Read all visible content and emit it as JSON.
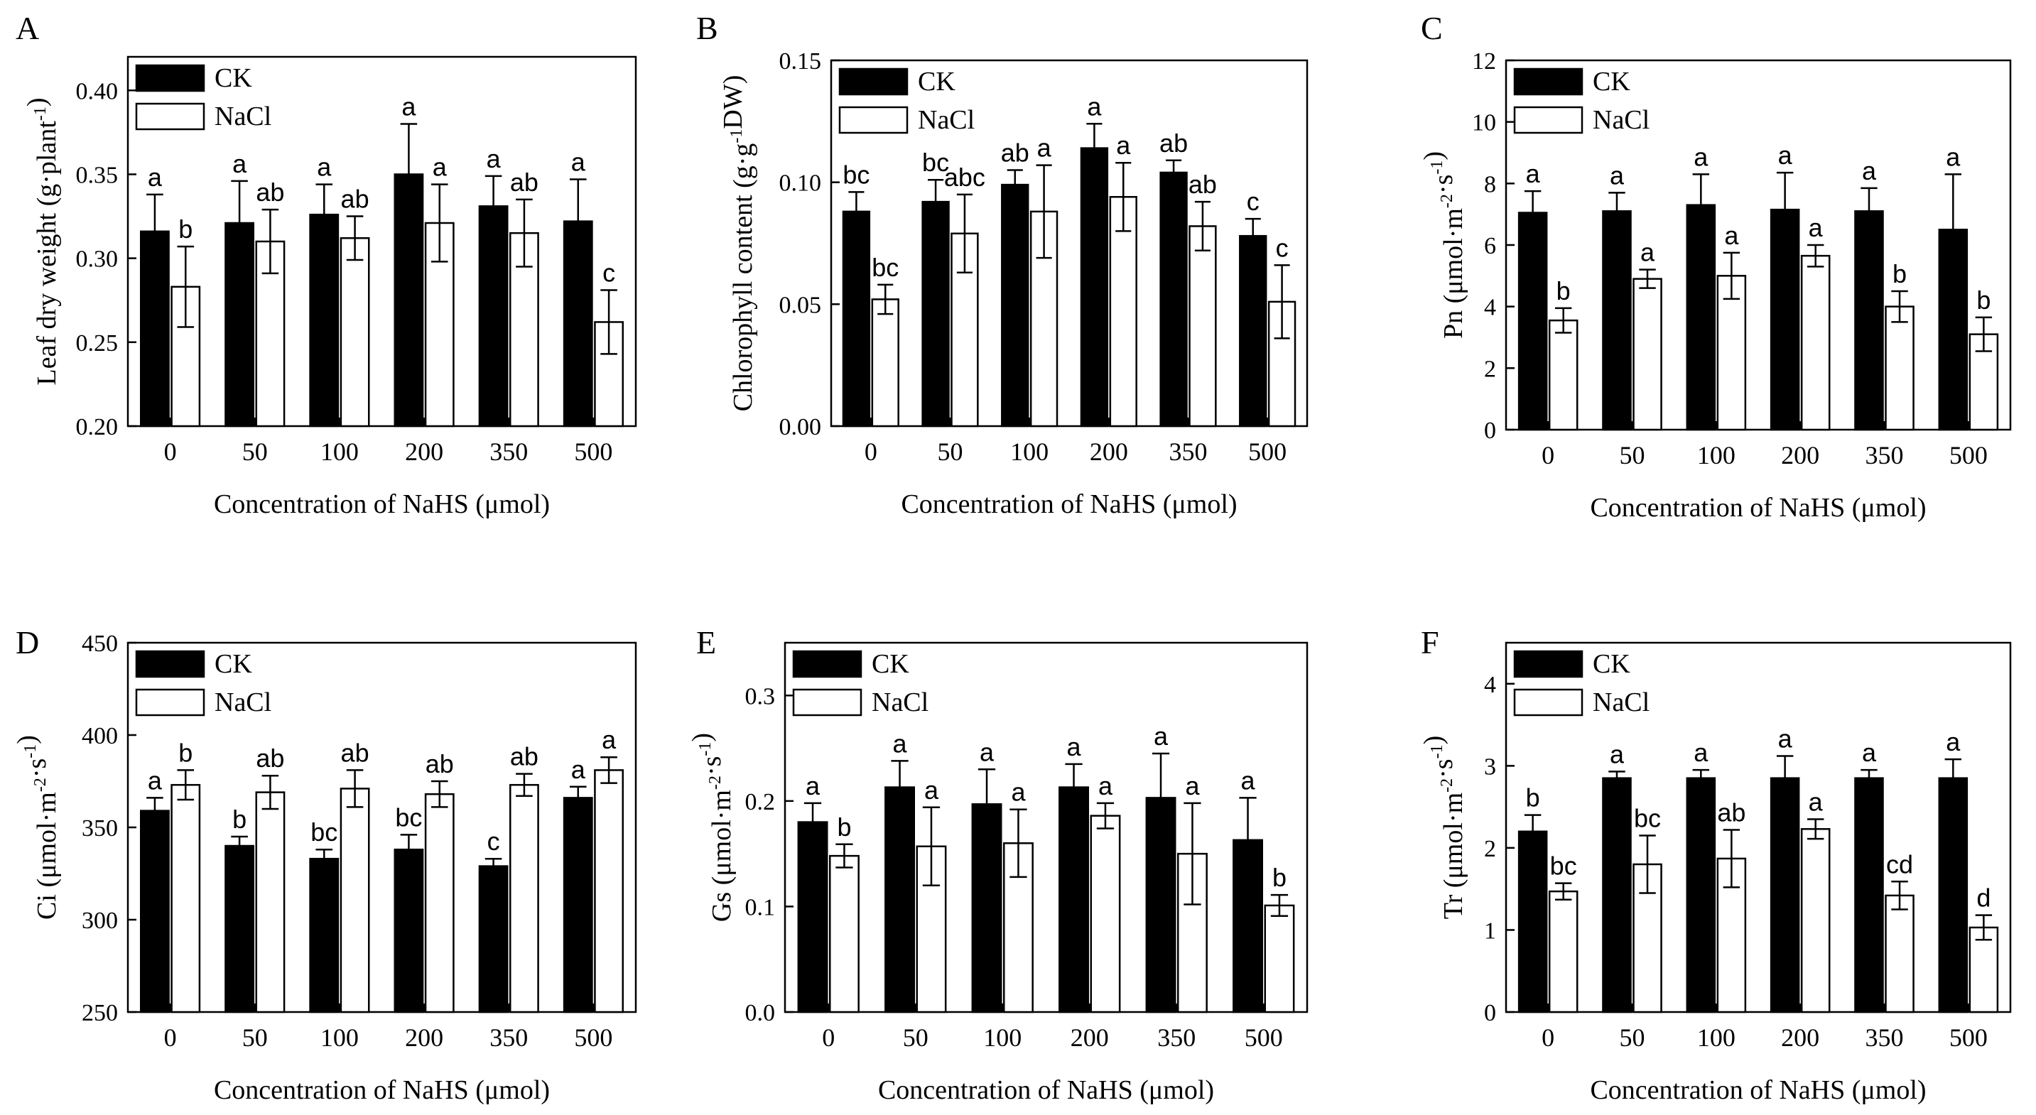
{
  "figure": {
    "colors": {
      "ck_fill": "#000000",
      "nacl_fill": "#ffffff",
      "stroke": "#000000"
    }
  },
  "chart_data": [
    {
      "panel": "A",
      "type": "bar",
      "categories": [
        "0",
        "50",
        "100",
        "200",
        "350",
        "500"
      ],
      "xlabel": "Concentration of NaHS (μmol)",
      "ylabel": {
        "base": "Leaf dry weight (g·plant",
        "sup": "-1",
        "tail": ")"
      },
      "ylim": [
        0.2,
        0.42
      ],
      "yticks": [
        0.2,
        0.25,
        0.3,
        0.35,
        0.4
      ],
      "ytick_labels": [
        "0.20",
        "0.25",
        "0.30",
        "0.35",
        "0.40"
      ],
      "legend": {
        "placement": "top-left",
        "labels": [
          "CK",
          "NaCl"
        ]
      },
      "series": [
        {
          "name": "CK",
          "values": [
            0.316,
            0.321,
            0.326,
            0.35,
            0.331,
            0.322
          ],
          "errors": [
            0.022,
            0.025,
            0.018,
            0.03,
            0.018,
            0.025
          ],
          "letters": [
            "a",
            "a",
            "a",
            "a",
            "a",
            "a"
          ]
        },
        {
          "name": "NaCl",
          "values": [
            0.283,
            0.31,
            0.312,
            0.321,
            0.315,
            0.262
          ],
          "errors": [
            0.024,
            0.019,
            0.013,
            0.023,
            0.02,
            0.019
          ],
          "letters": [
            "b",
            "ab",
            "ab",
            "a",
            "ab",
            "c"
          ]
        }
      ]
    },
    {
      "panel": "B",
      "type": "bar",
      "categories": [
        "0",
        "50",
        "100",
        "200",
        "350",
        "500"
      ],
      "xlabel": "Concentration of NaHS (μmol)",
      "ylabel": {
        "base": "Chlorophyll content (g·g",
        "sup": "-1",
        "tail": "DW)"
      },
      "ylim": [
        0,
        0.15
      ],
      "yticks": [
        0,
        0.05,
        0.1,
        0.15
      ],
      "ytick_labels": [
        "0.00",
        "0.05",
        "0.10",
        "0.15"
      ],
      "legend": {
        "placement": "top-left",
        "labels": [
          "CK",
          "NaCl"
        ]
      },
      "series": [
        {
          "name": "CK",
          "values": [
            0.088,
            0.092,
            0.099,
            0.114,
            0.104,
            0.078
          ],
          "errors": [
            0.008,
            0.009,
            0.006,
            0.01,
            0.005,
            0.007
          ],
          "letters": [
            "bc",
            "bc",
            "ab",
            "a",
            "ab",
            "c"
          ]
        },
        {
          "name": "NaCl",
          "values": [
            0.052,
            0.079,
            0.088,
            0.094,
            0.082,
            0.051
          ],
          "errors": [
            0.006,
            0.016,
            0.019,
            0.014,
            0.01,
            0.015
          ],
          "letters": [
            "bc",
            "abc",
            "a",
            "a",
            "ab",
            "c"
          ]
        }
      ]
    },
    {
      "panel": "C",
      "type": "bar",
      "categories": [
        "0",
        "50",
        "100",
        "200",
        "350",
        "500"
      ],
      "xlabel": "Concentration of NaHS (μmol)",
      "ylabel": {
        "base": "Pn (μmol·m",
        "sup": "-2",
        "mid": "·s",
        "sup2": "-1",
        "tail": ")"
      },
      "ylim": [
        0,
        12
      ],
      "yticks": [
        0,
        2,
        4,
        6,
        8,
        10,
        12
      ],
      "ytick_labels": [
        "0",
        "2",
        "4",
        "6",
        "8",
        "10",
        "12"
      ],
      "legend": {
        "placement": "top-left",
        "labels": [
          "CK",
          "NaCl"
        ]
      },
      "series": [
        {
          "name": "CK",
          "values": [
            7.05,
            7.1,
            7.3,
            7.15,
            7.1,
            6.5
          ],
          "errors": [
            0.7,
            0.6,
            1.0,
            1.2,
            0.75,
            1.8
          ],
          "letters": [
            "a",
            "a",
            "a",
            "a",
            "a",
            "a"
          ]
        },
        {
          "name": "NaCl",
          "values": [
            3.55,
            4.9,
            5.0,
            5.65,
            4.0,
            3.1
          ],
          "errors": [
            0.4,
            0.3,
            0.75,
            0.35,
            0.5,
            0.55
          ],
          "letters": [
            "b",
            "a",
            "a",
            "a",
            "b",
            "b"
          ]
        }
      ]
    },
    {
      "panel": "D",
      "type": "bar",
      "categories": [
        "0",
        "50",
        "100",
        "200",
        "350",
        "500"
      ],
      "xlabel": "Concentration of NaHS (μmol)",
      "ylabel": {
        "base": "Ci (μmol·m",
        "sup": "-2",
        "mid": "·s",
        "sup2": "-1",
        "tail": ")"
      },
      "ylim": [
        250,
        450
      ],
      "yticks": [
        250,
        300,
        350,
        400,
        450
      ],
      "ytick_labels": [
        "250",
        "300",
        "350",
        "400",
        "450"
      ],
      "legend": {
        "placement": "top-left",
        "labels": [
          "CK",
          "NaCl"
        ]
      },
      "series": [
        {
          "name": "CK",
          "values": [
            359,
            340,
            333,
            338,
            329,
            366
          ],
          "errors": [
            7,
            5,
            5,
            8,
            4,
            6
          ],
          "letters": [
            "a",
            "b",
            "bc",
            "bc",
            "c",
            "a"
          ]
        },
        {
          "name": "NaCl",
          "values": [
            373,
            369,
            371,
            368,
            373,
            381
          ],
          "errors": [
            8,
            9,
            10,
            7,
            6,
            7
          ],
          "letters": [
            "b",
            "ab",
            "ab",
            "ab",
            "ab",
            "a"
          ]
        }
      ]
    },
    {
      "panel": "E",
      "type": "bar",
      "categories": [
        "0",
        "50",
        "100",
        "200",
        "350",
        "500"
      ],
      "xlabel": "Concentration of NaHS (μmol)",
      "ylabel": {
        "base": "Gs (μmol·m",
        "sup": "-2",
        "mid": "·s",
        "sup2": "-1",
        "tail": ")"
      },
      "ylim": [
        0,
        0.35
      ],
      "yticks": [
        0,
        0.1,
        0.2,
        0.3
      ],
      "ytick_labels": [
        "0.0",
        "0.1",
        "0.2",
        "0.3"
      ],
      "legend": {
        "placement": "top-left",
        "labels": [
          "CK",
          "NaCl"
        ]
      },
      "series": [
        {
          "name": "CK",
          "values": [
            0.18,
            0.213,
            0.197,
            0.213,
            0.203,
            0.163
          ],
          "errors": [
            0.018,
            0.025,
            0.033,
            0.022,
            0.042,
            0.04
          ],
          "letters": [
            "a",
            "a",
            "a",
            "a",
            "a",
            "a"
          ]
        },
        {
          "name": "NaCl",
          "values": [
            0.148,
            0.157,
            0.16,
            0.186,
            0.15,
            0.101
          ],
          "errors": [
            0.011,
            0.037,
            0.032,
            0.012,
            0.048,
            0.01
          ],
          "letters": [
            "b",
            "a",
            "a",
            "a",
            "a",
            "b"
          ]
        }
      ]
    },
    {
      "panel": "F",
      "type": "bar",
      "categories": [
        "0",
        "50",
        "100",
        "200",
        "350",
        "500"
      ],
      "xlabel": "Concentration of NaHS (μmol)",
      "ylabel": {
        "base": "Tr (μmol·m",
        "sup": "-2",
        "mid": "·s",
        "sup2": "-1",
        "tail": ")"
      },
      "ylim": [
        0,
        4.5
      ],
      "yticks": [
        0,
        1,
        2,
        3,
        4
      ],
      "ytick_labels": [
        "0",
        "1",
        "2",
        "3",
        "4"
      ],
      "legend": {
        "placement": "top-left",
        "labels": [
          "CK",
          "NaCl"
        ]
      },
      "series": [
        {
          "name": "CK",
          "values": [
            2.2,
            2.85,
            2.85,
            2.85,
            2.85,
            2.85
          ],
          "errors": [
            0.2,
            0.08,
            0.1,
            0.27,
            0.1,
            0.23
          ],
          "letters": [
            "b",
            "a",
            "a",
            "a",
            "a",
            "a"
          ]
        },
        {
          "name": "NaCl",
          "values": [
            1.47,
            1.8,
            1.87,
            2.23,
            1.42,
            1.03
          ],
          "errors": [
            0.1,
            0.35,
            0.35,
            0.12,
            0.17,
            0.15
          ],
          "letters": [
            "bc",
            "bc",
            "ab",
            "a",
            "cd",
            "d"
          ]
        }
      ]
    }
  ]
}
